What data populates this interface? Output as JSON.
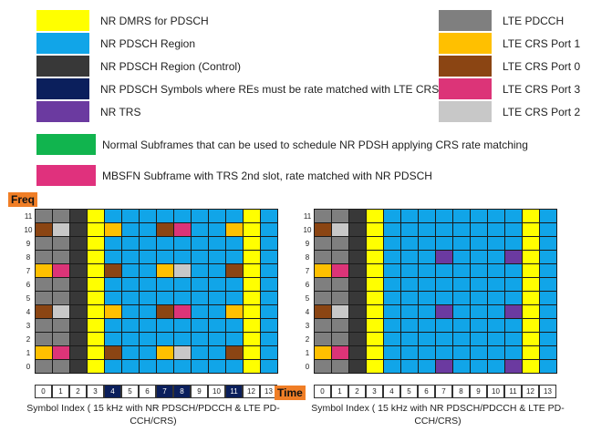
{
  "colors": {
    "dmrs": "#ffff00",
    "pdsch": "#11a5e8",
    "control": "#383838",
    "rm": "#0b1f5c",
    "trs": "#6b3aa0",
    "normal": "#11b44e",
    "mbsfn": "#e0317d",
    "pdcch": "#7f7f7f",
    "crs1": "#ffc000",
    "crs0": "#8b4513",
    "crs3": "#dc3478",
    "crs2": "#c8c8c8",
    "axis_tag": "#f07e26"
  },
  "legend_left": [
    {
      "key": "dmrs",
      "label": "NR DMRS for PDSCH"
    },
    {
      "key": "pdsch",
      "label": "NR PDSCH Region"
    },
    {
      "key": "control",
      "label": "NR PDSCH Region (Control)"
    },
    {
      "key": "rm",
      "label": "NR PDSCH Symbols where REs must be rate matched with LTE CRS"
    },
    {
      "key": "trs",
      "label": "NR TRS"
    }
  ],
  "legend_right": [
    {
      "key": "pdcch",
      "label": "LTE PDCCH"
    },
    {
      "key": "crs1",
      "label": "LTE CRS Port 1"
    },
    {
      "key": "crs0",
      "label": "LTE CRS Port 0"
    },
    {
      "key": "crs3",
      "label": "LTE CRS Port 3"
    },
    {
      "key": "crs2",
      "label": "LTE CRS Port 2"
    }
  ],
  "legend_wide": [
    {
      "key": "normal",
      "label": "Normal Subframes that can be used to schedule NR PDSH applying CRS rate matching"
    },
    {
      "key": "mbsfn",
      "label": "MBSFN Subframe with TRS 2nd slot, rate matched with NR PDSCH"
    }
  ],
  "axis": {
    "freq_label": "Freq",
    "time_label": "Time",
    "rows": [
      "11",
      "10",
      "9",
      "8",
      "7",
      "6",
      "5",
      "4",
      "3",
      "2",
      "1",
      "0"
    ],
    "cols": [
      "0",
      "1",
      "2",
      "3",
      "4",
      "5",
      "6",
      "7",
      "8",
      "9",
      "10",
      "11",
      "12",
      "13"
    ]
  },
  "left_grid": {
    "highlight_cols": [
      4,
      7,
      8,
      11
    ],
    "caption": "Symbol Index ( 15 kHz with NR PDSCH/PDCCH & LTE PD-CCH/CRS)",
    "rows": [
      [
        "pdcch",
        "pdcch",
        "control",
        "dmrs",
        "pdsch",
        "pdsch",
        "pdsch",
        "pdsch",
        "pdsch",
        "pdsch",
        "pdsch",
        "pdsch",
        "dmrs",
        "pdsch"
      ],
      [
        "crs0",
        "crs2",
        "control",
        "dmrs",
        "crs1",
        "pdsch",
        "pdsch",
        "crs0",
        "crs3",
        "pdsch",
        "pdsch",
        "crs1",
        "dmrs",
        "pdsch"
      ],
      [
        "pdcch",
        "pdcch",
        "control",
        "dmrs",
        "pdsch",
        "pdsch",
        "pdsch",
        "pdsch",
        "pdsch",
        "pdsch",
        "pdsch",
        "pdsch",
        "dmrs",
        "pdsch"
      ],
      [
        "pdcch",
        "pdcch",
        "control",
        "dmrs",
        "pdsch",
        "pdsch",
        "pdsch",
        "pdsch",
        "pdsch",
        "pdsch",
        "pdsch",
        "pdsch",
        "dmrs",
        "pdsch"
      ],
      [
        "crs1",
        "crs3",
        "control",
        "dmrs",
        "crs0",
        "pdsch",
        "pdsch",
        "crs1",
        "crs2",
        "pdsch",
        "pdsch",
        "crs0",
        "dmrs",
        "pdsch"
      ],
      [
        "pdcch",
        "pdcch",
        "control",
        "dmrs",
        "pdsch",
        "pdsch",
        "pdsch",
        "pdsch",
        "pdsch",
        "pdsch",
        "pdsch",
        "pdsch",
        "dmrs",
        "pdsch"
      ],
      [
        "pdcch",
        "pdcch",
        "control",
        "dmrs",
        "pdsch",
        "pdsch",
        "pdsch",
        "pdsch",
        "pdsch",
        "pdsch",
        "pdsch",
        "pdsch",
        "dmrs",
        "pdsch"
      ],
      [
        "crs0",
        "crs2",
        "control",
        "dmrs",
        "crs1",
        "pdsch",
        "pdsch",
        "crs0",
        "crs3",
        "pdsch",
        "pdsch",
        "crs1",
        "dmrs",
        "pdsch"
      ],
      [
        "pdcch",
        "pdcch",
        "control",
        "dmrs",
        "pdsch",
        "pdsch",
        "pdsch",
        "pdsch",
        "pdsch",
        "pdsch",
        "pdsch",
        "pdsch",
        "dmrs",
        "pdsch"
      ],
      [
        "pdcch",
        "pdcch",
        "control",
        "dmrs",
        "pdsch",
        "pdsch",
        "pdsch",
        "pdsch",
        "pdsch",
        "pdsch",
        "pdsch",
        "pdsch",
        "dmrs",
        "pdsch"
      ],
      [
        "crs1",
        "crs3",
        "control",
        "dmrs",
        "crs0",
        "pdsch",
        "pdsch",
        "crs1",
        "crs2",
        "pdsch",
        "pdsch",
        "crs0",
        "dmrs",
        "pdsch"
      ],
      [
        "pdcch",
        "pdcch",
        "control",
        "dmrs",
        "pdsch",
        "pdsch",
        "pdsch",
        "pdsch",
        "pdsch",
        "pdsch",
        "pdsch",
        "pdsch",
        "dmrs",
        "pdsch"
      ]
    ]
  },
  "right_grid": {
    "highlight_cols": [],
    "caption": "Symbol Index ( 15 kHz with NR PDSCH/PDCCH & LTE PD-CCH/CRS)",
    "rows": [
      [
        "pdcch",
        "pdcch",
        "control",
        "dmrs",
        "pdsch",
        "pdsch",
        "pdsch",
        "pdsch",
        "pdsch",
        "pdsch",
        "pdsch",
        "pdsch",
        "dmrs",
        "pdsch"
      ],
      [
        "crs0",
        "crs2",
        "control",
        "dmrs",
        "pdsch",
        "pdsch",
        "pdsch",
        "pdsch",
        "pdsch",
        "pdsch",
        "pdsch",
        "pdsch",
        "dmrs",
        "pdsch"
      ],
      [
        "pdcch",
        "pdcch",
        "control",
        "dmrs",
        "pdsch",
        "pdsch",
        "pdsch",
        "pdsch",
        "pdsch",
        "pdsch",
        "pdsch",
        "pdsch",
        "dmrs",
        "pdsch"
      ],
      [
        "pdcch",
        "pdcch",
        "control",
        "dmrs",
        "pdsch",
        "pdsch",
        "pdsch",
        "trs",
        "pdsch",
        "pdsch",
        "pdsch",
        "trs",
        "dmrs",
        "pdsch"
      ],
      [
        "crs1",
        "crs3",
        "control",
        "dmrs",
        "pdsch",
        "pdsch",
        "pdsch",
        "pdsch",
        "pdsch",
        "pdsch",
        "pdsch",
        "pdsch",
        "dmrs",
        "pdsch"
      ],
      [
        "pdcch",
        "pdcch",
        "control",
        "dmrs",
        "pdsch",
        "pdsch",
        "pdsch",
        "pdsch",
        "pdsch",
        "pdsch",
        "pdsch",
        "pdsch",
        "dmrs",
        "pdsch"
      ],
      [
        "pdcch",
        "pdcch",
        "control",
        "dmrs",
        "pdsch",
        "pdsch",
        "pdsch",
        "pdsch",
        "pdsch",
        "pdsch",
        "pdsch",
        "pdsch",
        "dmrs",
        "pdsch"
      ],
      [
        "crs0",
        "crs2",
        "control",
        "dmrs",
        "pdsch",
        "pdsch",
        "pdsch",
        "trs",
        "pdsch",
        "pdsch",
        "pdsch",
        "trs",
        "dmrs",
        "pdsch"
      ],
      [
        "pdcch",
        "pdcch",
        "control",
        "dmrs",
        "pdsch",
        "pdsch",
        "pdsch",
        "pdsch",
        "pdsch",
        "pdsch",
        "pdsch",
        "pdsch",
        "dmrs",
        "pdsch"
      ],
      [
        "pdcch",
        "pdcch",
        "control",
        "dmrs",
        "pdsch",
        "pdsch",
        "pdsch",
        "pdsch",
        "pdsch",
        "pdsch",
        "pdsch",
        "pdsch",
        "dmrs",
        "pdsch"
      ],
      [
        "crs1",
        "crs3",
        "control",
        "dmrs",
        "pdsch",
        "pdsch",
        "pdsch",
        "pdsch",
        "pdsch",
        "pdsch",
        "pdsch",
        "pdsch",
        "dmrs",
        "pdsch"
      ],
      [
        "pdcch",
        "pdcch",
        "control",
        "dmrs",
        "pdsch",
        "pdsch",
        "pdsch",
        "trs",
        "pdsch",
        "pdsch",
        "pdsch",
        "trs",
        "dmrs",
        "pdsch"
      ]
    ]
  }
}
